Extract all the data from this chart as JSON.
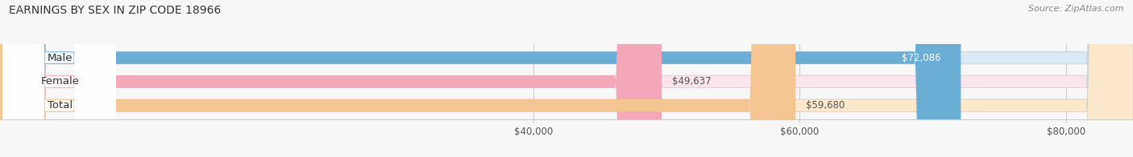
{
  "title": "EARNINGS BY SEX IN ZIP CODE 18966",
  "source": "Source: ZipAtlas.com",
  "categories": [
    "Male",
    "Female",
    "Total"
  ],
  "values": [
    72086,
    49637,
    59680
  ],
  "bar_colors": [
    "#6aaed6",
    "#f4a7b9",
    "#f5c592"
  ],
  "bar_bg_colors": [
    "#d8eaf5",
    "#fce4ec",
    "#fde8cc"
  ],
  "value_labels": [
    "$72,086",
    "$49,637",
    "$59,680"
  ],
  "x_min": 0,
  "x_max": 85000,
  "x_ticks": [
    40000,
    60000,
    80000
  ],
  "x_tick_labels": [
    "$40,000",
    "$60,000",
    "$80,000"
  ],
  "background_color": "#f7f7f7",
  "bar_height": 0.52,
  "title_fontsize": 10,
  "source_fontsize": 8,
  "label_fontsize": 9.5,
  "value_fontsize": 8.5,
  "tick_fontsize": 8.5,
  "label_bg_colors": [
    "#6aaed6",
    "#f4a7b9",
    "#f5c592"
  ]
}
